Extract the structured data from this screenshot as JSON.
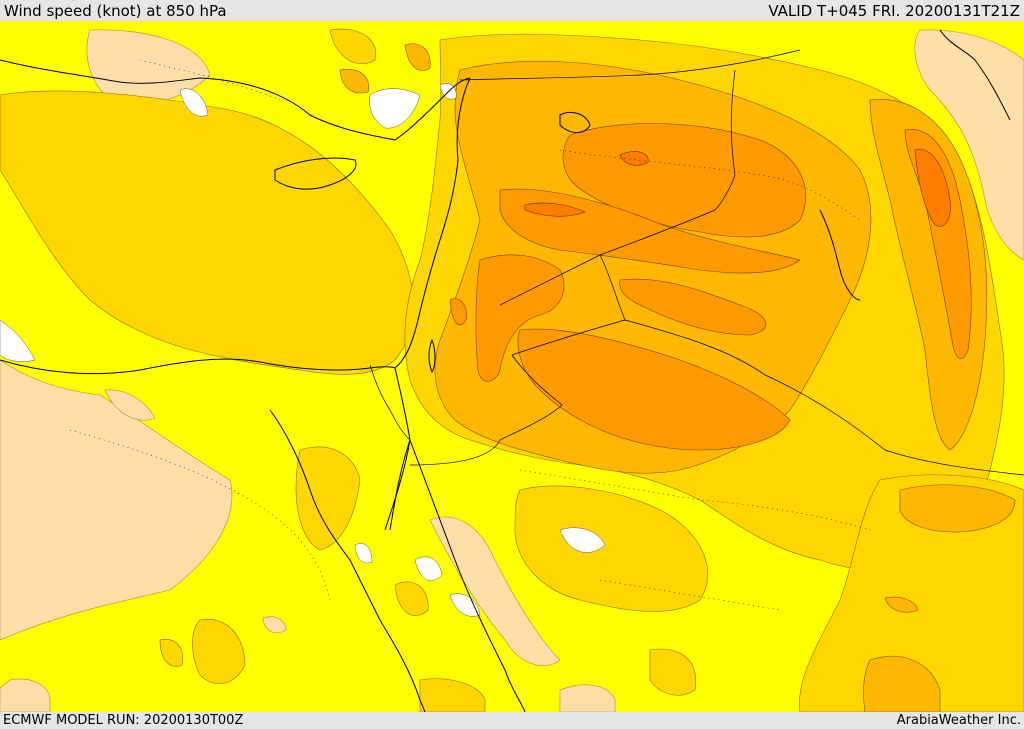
{
  "header": {
    "title": "Wind speed (knot) at 850 hPa",
    "valid": "VALID T+045 FRI. 20200131T21Z"
  },
  "footer": {
    "model_run": "ECMWF MODEL RUN: 20200130T00Z",
    "credit": "ArabiaWeather Inc."
  },
  "colors": {
    "band_lt10": "#ffdfa8",
    "band_10_15": "#ffff00",
    "band_15_20": "#ffd700",
    "band_20_25": "#ffb800",
    "band_25_30": "#ff9a00",
    "band_30_35": "#ff7e00",
    "missing": "#ffffff",
    "coastline": "#000000",
    "border": "#000000"
  }
}
